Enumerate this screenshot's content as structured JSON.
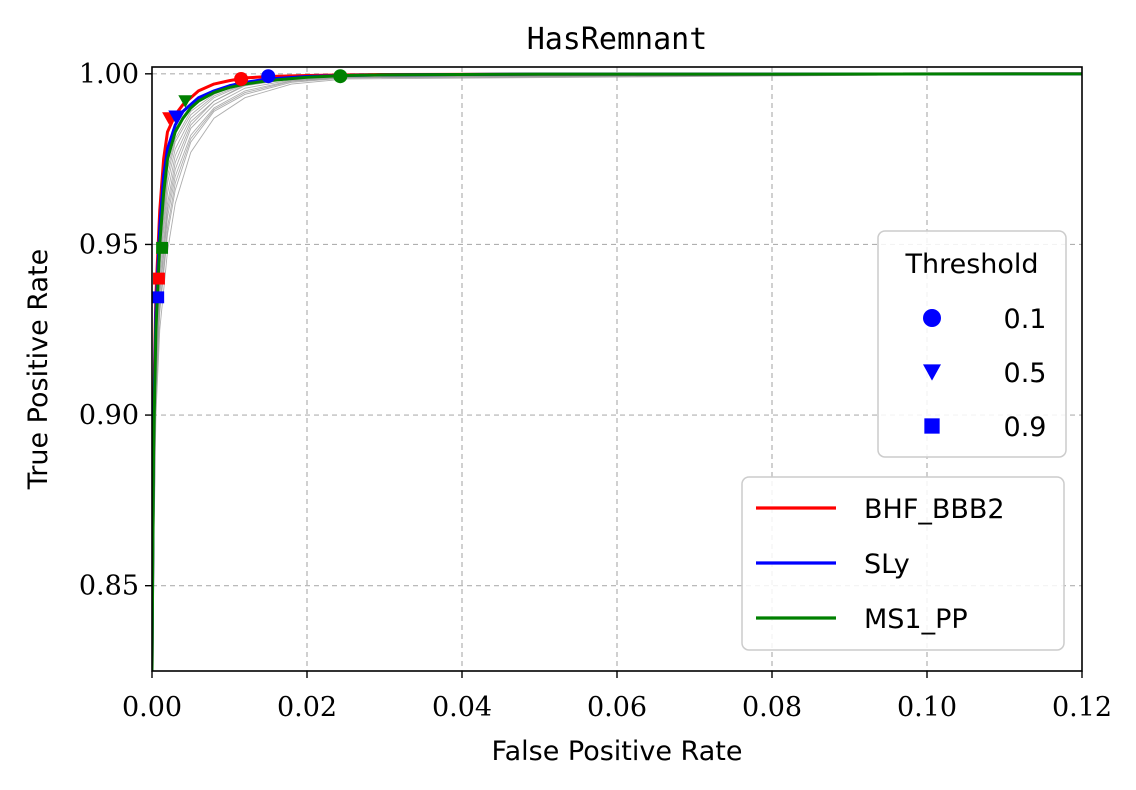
{
  "chart_data": {
    "type": "line",
    "title": "HasRemnant",
    "xlabel": "False Positive Rate",
    "ylabel": "True Positive Rate",
    "xlim": [
      0.0,
      0.12
    ],
    "ylim": [
      0.825,
      1.002
    ],
    "xticks": [
      0.0,
      0.02,
      0.04,
      0.06,
      0.08,
      0.1,
      0.12
    ],
    "xtick_labels": [
      "0.00",
      "0.02",
      "0.04",
      "0.06",
      "0.08",
      "0.10",
      "0.12"
    ],
    "yticks": [
      0.85,
      0.9,
      0.95,
      1.0
    ],
    "ytick_labels": [
      "0.85",
      "0.90",
      "0.95",
      "1.00"
    ],
    "grid": true,
    "series": [
      {
        "name": "BHF_BBB2",
        "color": "#ff0000",
        "x": [
          0.0,
          0.0002,
          0.0005,
          0.0008,
          0.001,
          0.0015,
          0.002,
          0.003,
          0.004,
          0.005,
          0.006,
          0.008,
          0.01,
          0.012,
          0.015,
          0.02,
          0.025,
          0.03,
          0.05,
          0.08,
          0.12
        ],
        "y": [
          0.825,
          0.9,
          0.935,
          0.95,
          0.96,
          0.975,
          0.983,
          0.988,
          0.991,
          0.993,
          0.995,
          0.997,
          0.998,
          0.9988,
          0.9992,
          0.9995,
          0.9997,
          0.9998,
          0.9999,
          0.9999,
          1.0
        ]
      },
      {
        "name": "SLy",
        "color": "#0000ff",
        "x": [
          0.0,
          0.0002,
          0.0005,
          0.0008,
          0.001,
          0.0015,
          0.002,
          0.003,
          0.004,
          0.005,
          0.006,
          0.008,
          0.01,
          0.012,
          0.015,
          0.02,
          0.025,
          0.03,
          0.05,
          0.08,
          0.12
        ],
        "y": [
          0.825,
          0.895,
          0.93,
          0.945,
          0.955,
          0.97,
          0.978,
          0.985,
          0.989,
          0.991,
          0.993,
          0.995,
          0.9965,
          0.9975,
          0.9985,
          0.9992,
          0.9995,
          0.9997,
          0.9999,
          0.9999,
          1.0
        ]
      },
      {
        "name": "MS1_PP",
        "color": "#008000",
        "x": [
          0.0,
          0.0002,
          0.0005,
          0.0008,
          0.001,
          0.0015,
          0.002,
          0.003,
          0.004,
          0.005,
          0.006,
          0.008,
          0.01,
          0.012,
          0.015,
          0.02,
          0.025,
          0.03,
          0.05,
          0.08,
          0.12
        ],
        "y": [
          0.825,
          0.89,
          0.925,
          0.94,
          0.95,
          0.965,
          0.975,
          0.983,
          0.987,
          0.99,
          0.992,
          0.9945,
          0.996,
          0.997,
          0.998,
          0.999,
          0.9995,
          0.9997,
          0.9999,
          0.9999,
          1.0
        ]
      }
    ],
    "threshold_markers": [
      {
        "series": "BHF_BBB2",
        "color": "#ff0000",
        "points": [
          {
            "threshold": "0.1",
            "shape": "circle",
            "x": 0.0115,
            "y": 0.9985
          },
          {
            "threshold": "0.5",
            "shape": "triangle",
            "x": 0.0022,
            "y": 0.987
          },
          {
            "threshold": "0.9",
            "shape": "square",
            "x": 0.0009,
            "y": 0.94
          }
        ]
      },
      {
        "series": "SLy",
        "color": "#0000ff",
        "points": [
          {
            "threshold": "0.1",
            "shape": "circle",
            "x": 0.015,
            "y": 0.9993
          },
          {
            "threshold": "0.5",
            "shape": "triangle",
            "x": 0.003,
            "y": 0.9875
          },
          {
            "threshold": "0.9",
            "shape": "square",
            "x": 0.0008,
            "y": 0.9345
          }
        ]
      },
      {
        "series": "MS1_PP",
        "color": "#008000",
        "points": [
          {
            "threshold": "0.1",
            "shape": "circle",
            "x": 0.0243,
            "y": 0.9993
          },
          {
            "threshold": "0.5",
            "shape": "triangle",
            "x": 0.0043,
            "y": 0.992
          },
          {
            "threshold": "0.9",
            "shape": "square",
            "x": 0.0013,
            "y": 0.949
          }
        ]
      }
    ],
    "background_curves": {
      "color": "#999999",
      "curves": [
        {
          "x": [
            0.0,
            0.0005,
            0.001,
            0.002,
            0.003,
            0.005,
            0.008,
            0.012,
            0.018,
            0.025,
            0.12
          ],
          "y": [
            0.825,
            0.92,
            0.945,
            0.968,
            0.978,
            0.987,
            0.993,
            0.997,
            0.999,
            0.9995,
            1.0
          ]
        },
        {
          "x": [
            0.0,
            0.0005,
            0.001,
            0.002,
            0.003,
            0.005,
            0.008,
            0.012,
            0.018,
            0.025,
            0.12
          ],
          "y": [
            0.825,
            0.915,
            0.94,
            0.962,
            0.974,
            0.985,
            0.992,
            0.9965,
            0.9985,
            0.9993,
            1.0
          ]
        },
        {
          "x": [
            0.0,
            0.0005,
            0.001,
            0.002,
            0.003,
            0.005,
            0.008,
            0.012,
            0.018,
            0.025,
            0.12
          ],
          "y": [
            0.825,
            0.91,
            0.935,
            0.958,
            0.97,
            0.982,
            0.99,
            0.995,
            0.998,
            0.999,
            1.0
          ]
        },
        {
          "x": [
            0.0,
            0.0005,
            0.001,
            0.002,
            0.003,
            0.005,
            0.008,
            0.012,
            0.018,
            0.025,
            0.12
          ],
          "y": [
            0.825,
            0.905,
            0.93,
            0.953,
            0.966,
            0.98,
            0.989,
            0.994,
            0.9975,
            0.9988,
            1.0
          ]
        },
        {
          "x": [
            0.0,
            0.0005,
            0.001,
            0.002,
            0.003,
            0.005,
            0.008,
            0.012,
            0.018,
            0.025,
            0.12
          ],
          "y": [
            0.825,
            0.925,
            0.95,
            0.972,
            0.981,
            0.989,
            0.994,
            0.9975,
            0.9992,
            0.9996,
            1.0
          ]
        },
        {
          "x": [
            0.0,
            0.0005,
            0.001,
            0.002,
            0.003,
            0.005,
            0.008,
            0.012,
            0.018,
            0.025,
            0.12
          ],
          "y": [
            0.825,
            0.9,
            0.925,
            0.948,
            0.962,
            0.977,
            0.987,
            0.993,
            0.997,
            0.9985,
            1.0
          ]
        },
        {
          "x": [
            0.0,
            0.0005,
            0.001,
            0.002,
            0.003,
            0.005,
            0.008,
            0.012,
            0.018,
            0.025,
            0.12
          ],
          "y": [
            0.825,
            0.918,
            0.943,
            0.965,
            0.976,
            0.986,
            0.992,
            0.9968,
            0.9988,
            0.9994,
            1.0
          ]
        },
        {
          "x": [
            0.0,
            0.0005,
            0.001,
            0.002,
            0.003,
            0.005,
            0.008,
            0.012,
            0.018,
            0.025,
            0.12
          ],
          "y": [
            0.825,
            0.912,
            0.937,
            0.96,
            0.972,
            0.984,
            0.991,
            0.9958,
            0.9982,
            0.9991,
            1.0
          ]
        },
        {
          "x": [
            0.0,
            0.0005,
            0.001,
            0.002,
            0.003,
            0.005,
            0.008,
            0.012,
            0.018,
            0.025,
            0.12
          ],
          "y": [
            0.825,
            0.922,
            0.948,
            0.97,
            0.98,
            0.988,
            0.9935,
            0.9972,
            0.999,
            0.9995,
            1.0
          ]
        },
        {
          "x": [
            0.0,
            0.0005,
            0.001,
            0.002,
            0.003,
            0.005,
            0.008,
            0.012,
            0.018,
            0.025,
            0.12
          ],
          "y": [
            0.825,
            0.907,
            0.932,
            0.955,
            0.968,
            0.981,
            0.9895,
            0.9945,
            0.9978,
            0.9989,
            1.0
          ]
        }
      ]
    },
    "threshold_legend": {
      "title": "Threshold",
      "placement": "center-right",
      "entries": [
        {
          "label": "0.1",
          "shape": "circle",
          "color": "#0000ff"
        },
        {
          "label": "0.5",
          "shape": "triangle",
          "color": "#0000ff"
        },
        {
          "label": "0.9",
          "shape": "square",
          "color": "#0000ff"
        }
      ]
    },
    "series_legend": {
      "placement": "lower-right",
      "entries": [
        "BHF_BBB2",
        "SLy",
        "MS1_PP"
      ]
    }
  }
}
